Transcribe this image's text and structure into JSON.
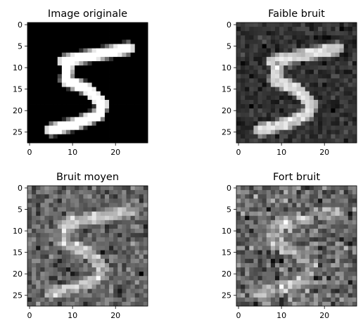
{
  "chart_data": [
    {
      "type": "heatmap",
      "title": "Image originale",
      "colormap": "gray",
      "noise_std": 0,
      "image_size": 28,
      "xticks": [
        0,
        10,
        20
      ],
      "yticks": [
        0,
        5,
        10,
        15,
        20,
        25
      ],
      "xlim": [
        -0.5,
        27.5
      ],
      "ylim": [
        27.5,
        -0.5
      ]
    },
    {
      "type": "heatmap",
      "title": "Faible bruit",
      "colormap": "gray",
      "noise_std": 0.1,
      "image_size": 28,
      "xticks": [
        0,
        10,
        20
      ],
      "yticks": [
        0,
        5,
        10,
        15,
        20,
        25
      ],
      "xlim": [
        -0.5,
        27.5
      ],
      "ylim": [
        27.5,
        -0.5
      ]
    },
    {
      "type": "heatmap",
      "title": "Bruit moyen",
      "colormap": "gray",
      "noise_std": 0.3,
      "image_size": 28,
      "xticks": [
        0,
        10,
        20
      ],
      "yticks": [
        0,
        5,
        10,
        15,
        20,
        25
      ],
      "xlim": [
        -0.5,
        27.5
      ],
      "ylim": [
        27.5,
        -0.5
      ]
    },
    {
      "type": "heatmap",
      "title": "Fort bruit",
      "colormap": "gray",
      "noise_std": 0.6,
      "image_size": 28,
      "xticks": [
        0,
        10,
        20
      ],
      "yticks": [
        0,
        5,
        10,
        15,
        20,
        25
      ],
      "xlim": [
        -0.5,
        27.5
      ],
      "ylim": [
        27.5,
        -0.5
      ]
    }
  ]
}
